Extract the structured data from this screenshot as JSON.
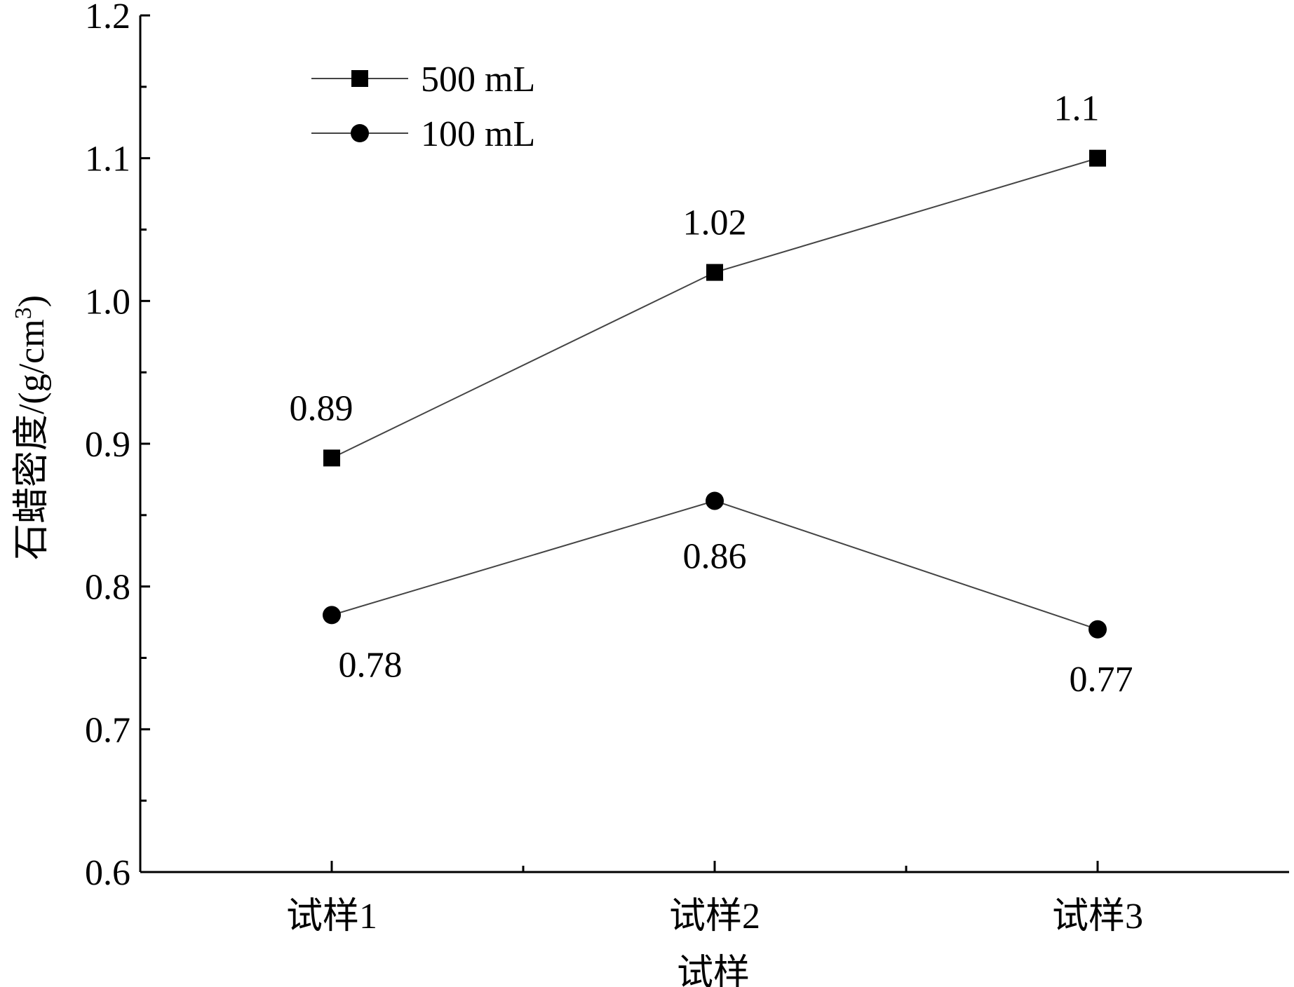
{
  "chart_data": {
    "type": "line",
    "title": "",
    "xlabel": "试样",
    "ylabel_main": "石蜡密度/(g/cm",
    "ylabel_sup": "3",
    "ylabel_close": ")",
    "categories": [
      "试样1",
      "试样2",
      "试样3"
    ],
    "ylim": [
      0.6,
      1.2
    ],
    "yticks": [
      0.6,
      0.7,
      0.8,
      0.9,
      1.0,
      1.1,
      1.2
    ],
    "ytick_labels": [
      "0.6",
      "0.7",
      "0.8",
      "0.9",
      "1.0",
      "1.1",
      "1.2"
    ],
    "legend_position": "top-left",
    "grid": false,
    "series": [
      {
        "name": "500 mL",
        "marker": "square",
        "values": [
          0.89,
          1.02,
          1.1
        ],
        "labels": [
          "0.89",
          "1.02",
          "1.1"
        ],
        "label_side": [
          "above",
          "above",
          "above"
        ]
      },
      {
        "name": "100 mL",
        "marker": "circle",
        "values": [
          0.78,
          0.86,
          0.77
        ],
        "labels": [
          "0.78",
          "0.86",
          "0.77"
        ],
        "label_side": [
          "below",
          "below",
          "below"
        ]
      }
    ]
  }
}
